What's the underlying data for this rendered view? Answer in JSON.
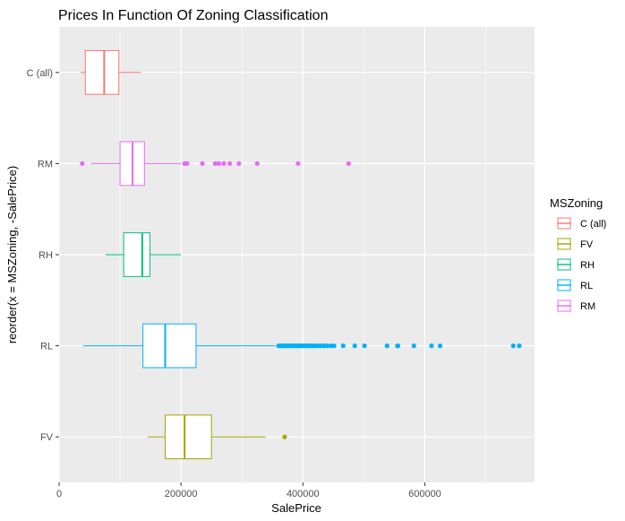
{
  "chart_data": {
    "type": "boxplot",
    "title": "Prices In Function Of Zoning Classification",
    "xlabel": "SalePrice",
    "ylabel": "reorder(x = MSZoning, -SalePrice)",
    "xlim": [
      0,
      780000
    ],
    "x_ticks": [
      0,
      200000,
      400000,
      600000
    ],
    "x_tick_labels": [
      "0",
      "200000",
      "400000",
      "600000"
    ],
    "grid": true,
    "orientation": "horizontal",
    "categories": [
      "C (all)",
      "RM",
      "RH",
      "RL",
      "FV"
    ],
    "series": [
      {
        "name": "C (all)",
        "color": "#F8766D",
        "whisker_low": 35000,
        "q1": 43000,
        "median": 74000,
        "q3": 98000,
        "whisker_high": 134000,
        "outliers": []
      },
      {
        "name": "RM",
        "color": "#E76BF3",
        "whisker_low": 52000,
        "q1": 100000,
        "median": 120500,
        "q3": 140000,
        "whisker_high": 200000,
        "outliers": [
          37900,
          206000,
          210000,
          235000,
          256000,
          262000,
          270000,
          280000,
          295000,
          325000,
          392000,
          475000
        ]
      },
      {
        "name": "RH",
        "color": "#00BF7D",
        "whisker_low": 76000,
        "q1": 106000,
        "median": 136500,
        "q3": 149000,
        "whisker_high": 200000,
        "outliers": []
      },
      {
        "name": "RL",
        "color": "#00B0F6",
        "whisker_low": 39300,
        "q1": 137500,
        "median": 174000,
        "q3": 224700,
        "whisker_high": 355000,
        "outliers": [
          360000,
          363000,
          366000,
          369000,
          372000,
          375000,
          378000,
          381000,
          384000,
          387000,
          390000,
          393000,
          396000,
          399000,
          402000,
          405000,
          408000,
          411000,
          414000,
          417000,
          421000,
          425000,
          430000,
          435000,
          440000,
          446000,
          451000,
          466000,
          485000,
          501000,
          538000,
          555000,
          556000,
          582000,
          611000,
          625000,
          745000,
          755000
        ]
      },
      {
        "name": "FV",
        "color": "#A3A500",
        "whisker_low": 145000,
        "q1": 174000,
        "median": 205950,
        "q3": 250000,
        "whisker_high": 339000,
        "outliers": [
          370000
        ]
      }
    ],
    "legend": {
      "title": "MSZoning",
      "placement": "right",
      "items": [
        {
          "label": "C (all)",
          "color": "#F8766D"
        },
        {
          "label": "FV",
          "color": "#A3A500"
        },
        {
          "label": "RH",
          "color": "#00BF7D"
        },
        {
          "label": "RL",
          "color": "#00B0F6"
        },
        {
          "label": "RM",
          "color": "#E76BF3"
        }
      ]
    },
    "panel_background": "#EBEBEB",
    "grid_color": "#FFFFFF"
  }
}
